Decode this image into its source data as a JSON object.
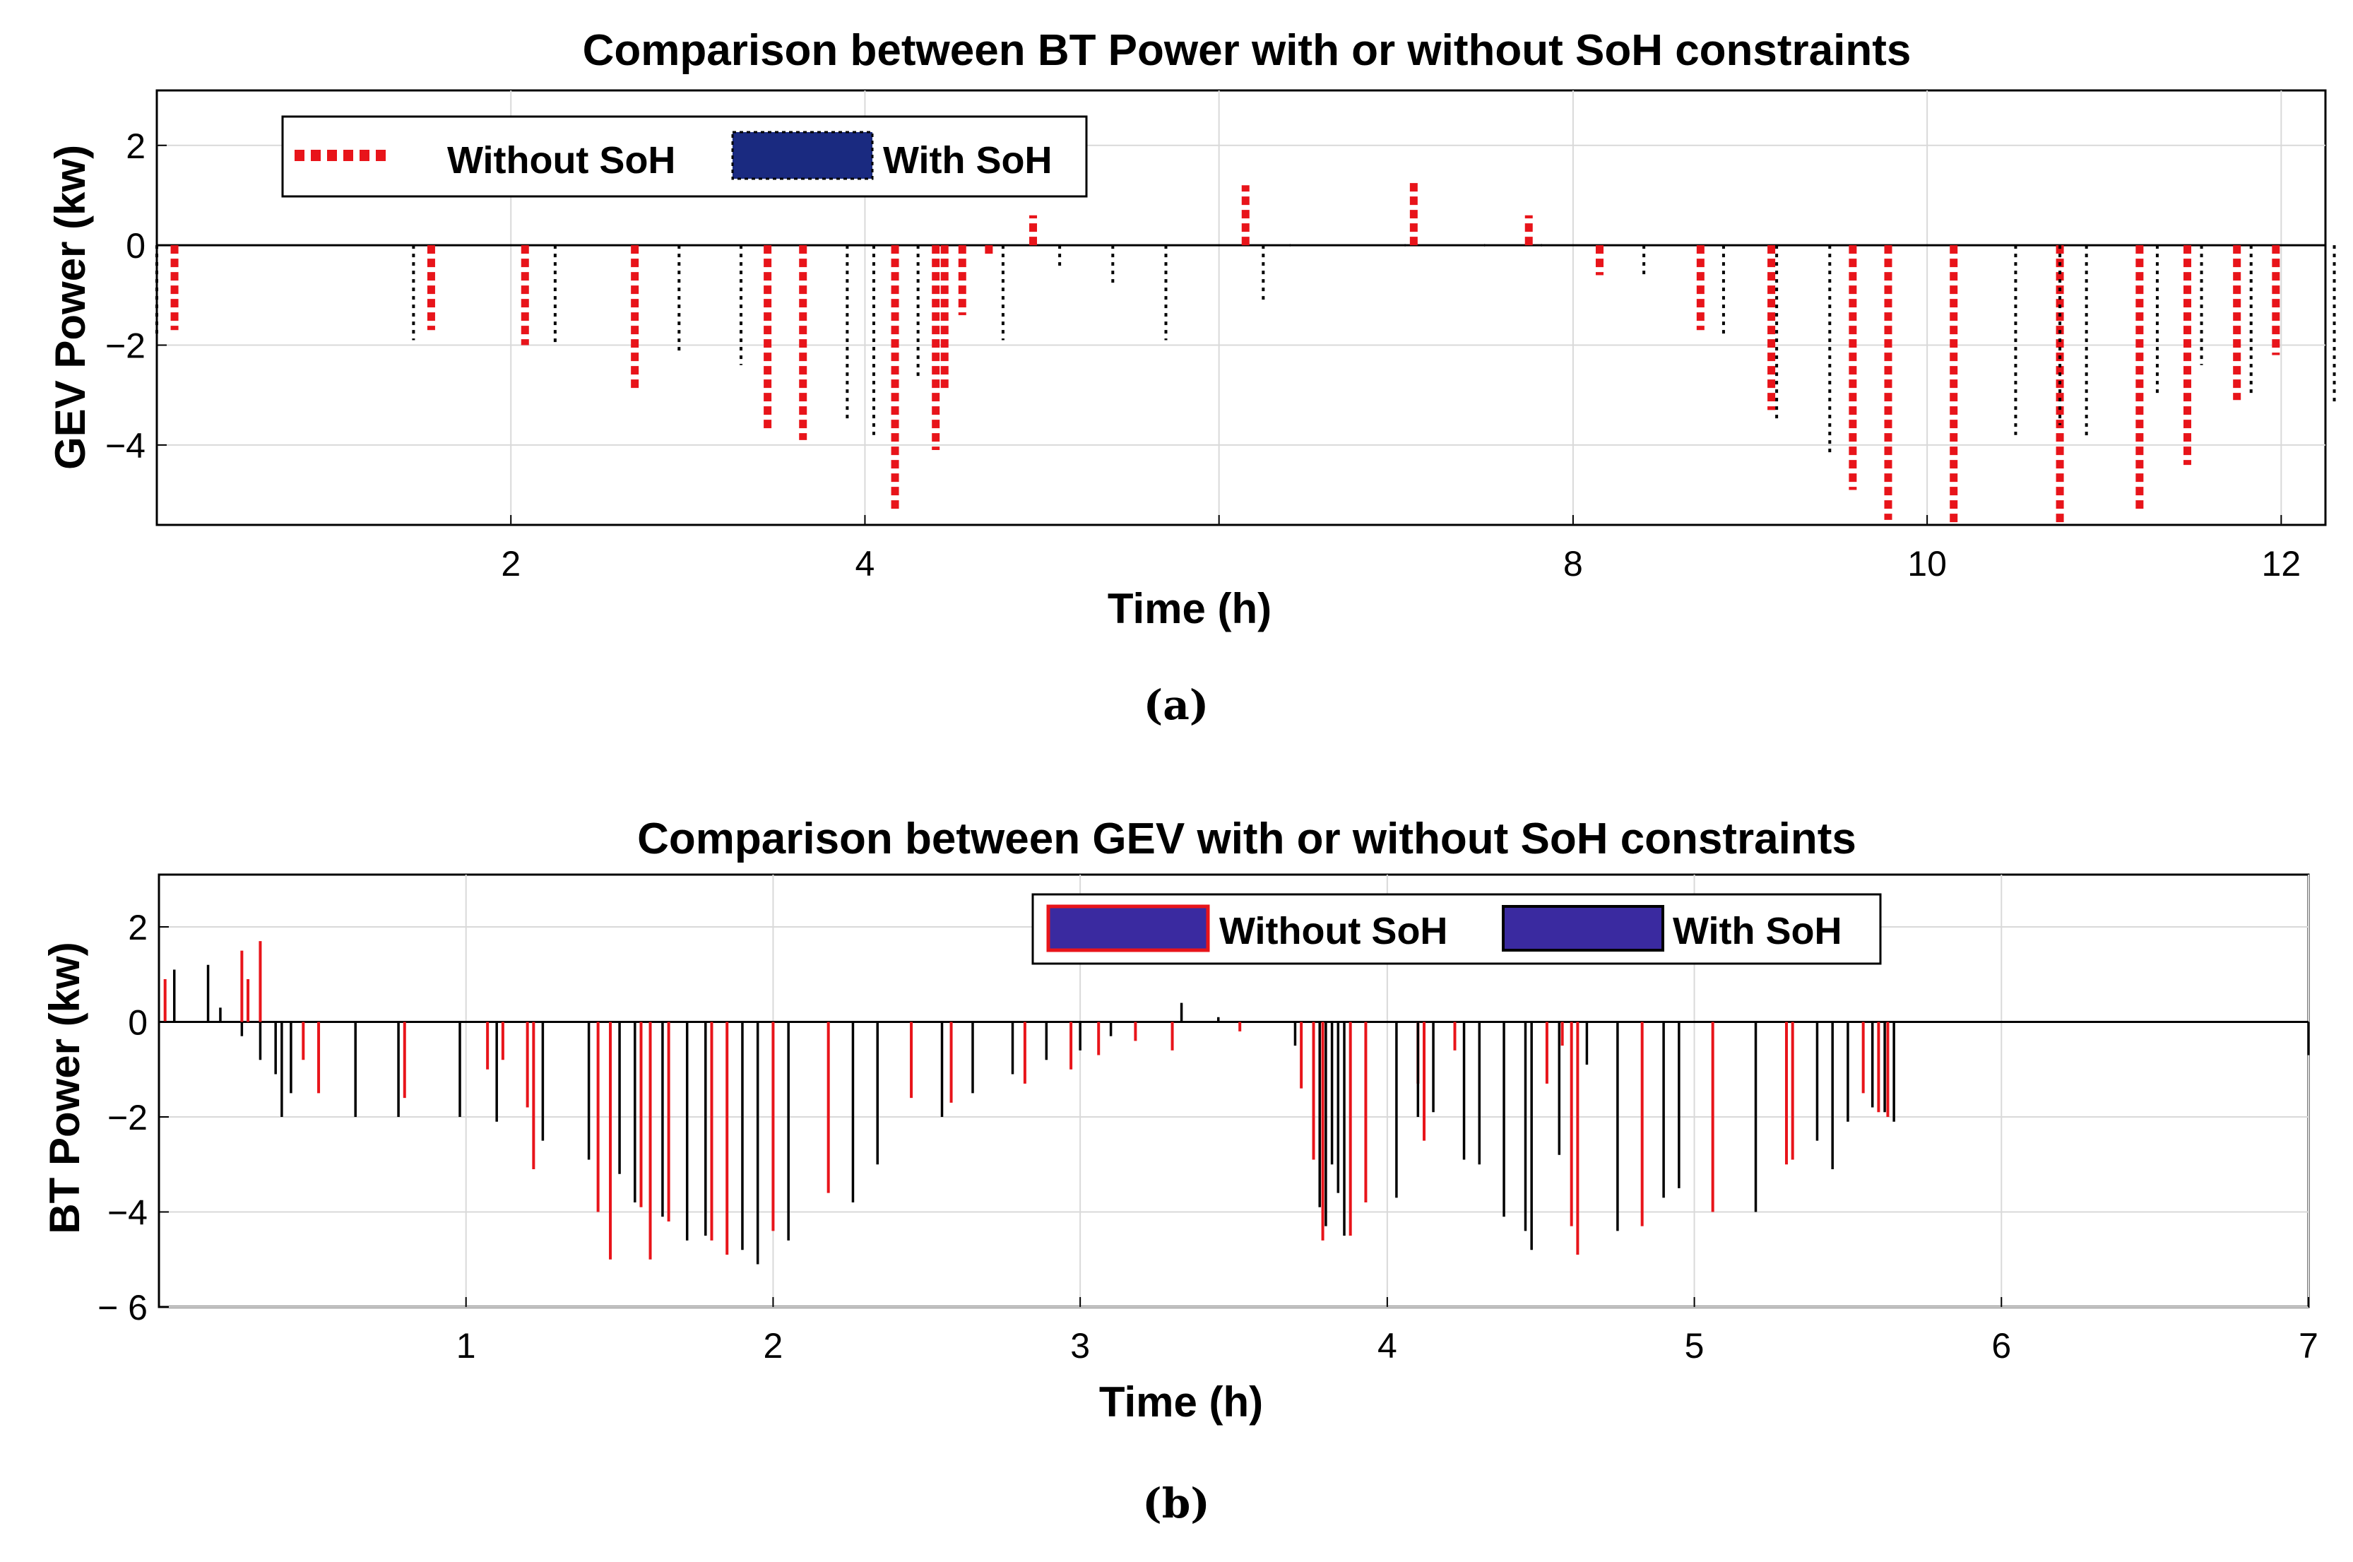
{
  "chart_data": [
    {
      "type": "bar",
      "title": "Comparison between BT Power with or without SoH constraints",
      "xlabel": "Time (h)",
      "ylabel": "GEV Power (kw)",
      "caption": "(a)",
      "xlim": [
        0,
        12.25
      ],
      "ylim": [
        -5.6,
        3.1
      ],
      "xticks": [
        2,
        4,
        6,
        8,
        10,
        12
      ],
      "xtick_labels": [
        "2",
        "4",
        "",
        "8",
        "10",
        "12"
      ],
      "yticks": [
        2,
        0,
        -2,
        -4
      ],
      "ytick_labels": [
        "2",
        "0",
        "−2",
        "−4"
      ],
      "grid": true,
      "legend": {
        "placement": "top-left",
        "items": [
          "Without SoH",
          "With SoH"
        ]
      },
      "series": [
        {
          "name": "Without SoH",
          "style": "dotted-thick",
          "color": "#e8141a",
          "x": [
            0.1,
            1.55,
            2.08,
            2.7,
            3.45,
            3.65,
            4.17,
            4.4,
            4.45,
            4.55,
            4.7,
            4.95,
            6.15,
            7.1,
            7.75,
            8.15,
            8.72,
            9.12,
            9.58,
            9.78,
            10.15,
            10.75,
            11.2,
            11.47,
            11.75,
            11.97
          ],
          "values": [
            -1.7,
            -1.7,
            -2.0,
            -2.9,
            -3.7,
            -3.9,
            -5.3,
            -4.1,
            -2.9,
            -1.4,
            -0.2,
            0.6,
            1.2,
            1.3,
            0.6,
            -0.6,
            -1.7,
            -3.3,
            -4.9,
            -5.5,
            -5.6,
            -5.6,
            -5.3,
            -4.4,
            -3.1,
            -2.2
          ]
        },
        {
          "name": "With SoH",
          "style": "dotted-thin",
          "color": "#000000",
          "x": [
            0.0,
            1.45,
            2.25,
            2.95,
            3.3,
            3.9,
            4.05,
            4.3,
            4.78,
            5.1,
            5.4,
            5.7,
            6.25,
            6.4,
            7.05,
            7.5,
            7.82,
            8.4,
            8.85,
            9.15,
            9.45,
            10.5,
            10.75,
            10.9,
            11.3,
            11.55,
            11.83,
            12.3
          ],
          "values": [
            -1.8,
            -1.9,
            -2.0,
            -2.2,
            -2.4,
            -3.5,
            -3.8,
            -2.7,
            -1.9,
            -0.5,
            -0.8,
            -1.9,
            -1.1,
            0.0,
            0.0,
            0.0,
            0.0,
            -0.6,
            -1.8,
            -3.5,
            -4.2,
            -3.8,
            -3.6,
            -3.9,
            -3.0,
            -2.4,
            -3.0,
            -3.2
          ]
        }
      ]
    },
    {
      "type": "bar",
      "title": "Comparison between GEV with or without SoH constraints",
      "xlabel": "Time (h)",
      "ylabel": "BT Power (kw)",
      "caption": "(b)",
      "xlim": [
        0,
        7
      ],
      "ylim": [
        -6,
        3.1
      ],
      "xticks": [
        1,
        2,
        3,
        4,
        5,
        6,
        7
      ],
      "xtick_labels": [
        "1",
        "2",
        "3",
        "4",
        "5",
        "6",
        "7"
      ],
      "yticks": [
        2,
        0,
        -2,
        -4,
        -6
      ],
      "ytick_labels": [
        "2",
        "0",
        "−2",
        "−4",
        "− 6"
      ],
      "grid": true,
      "legend": {
        "placement": "top-right",
        "items": [
          "Without SoH",
          "With SoH"
        ]
      },
      "series": [
        {
          "name": "Without SoH",
          "style": "stem",
          "color": "#e8141a",
          "x": [
            0.02,
            0.27,
            0.29,
            0.33,
            0.47,
            0.52,
            0.8,
            1.07,
            1.12,
            1.2,
            1.22,
            1.43,
            1.47,
            1.57,
            1.6,
            1.66,
            1.8,
            1.85,
            2.0,
            2.18,
            2.45,
            2.58,
            2.82,
            2.97,
            3.06,
            3.18,
            3.3,
            3.52,
            3.72,
            3.76,
            3.79,
            3.88,
            3.93,
            4.1,
            4.12,
            4.22,
            4.52,
            4.57,
            4.6,
            4.62,
            4.83,
            5.06,
            5.3,
            5.32,
            5.55,
            5.6,
            5.63
          ],
          "values": [
            0.9,
            1.5,
            0.9,
            1.7,
            -0.8,
            -1.5,
            -1.6,
            -1.0,
            -0.8,
            -1.8,
            -3.1,
            -4.0,
            -5.0,
            -3.9,
            -5.0,
            -4.2,
            -4.6,
            -4.9,
            -4.4,
            -3.6,
            -1.6,
            -1.7,
            -1.3,
            -1.0,
            -0.7,
            -0.4,
            -0.6,
            -0.2,
            -1.4,
            -2.9,
            -4.6,
            -4.5,
            -3.8,
            -1.3,
            -2.5,
            -0.6,
            -1.3,
            -0.5,
            -4.3,
            -4.9,
            -4.3,
            -4.0,
            -3.0,
            -2.9,
            -1.5,
            -1.9,
            -2.0
          ]
        },
        {
          "name": "With SoH",
          "style": "stem",
          "color": "#000000",
          "x": [
            0.05,
            0.16,
            0.2,
            0.27,
            0.33,
            0.38,
            0.4,
            0.43,
            0.64,
            0.78,
            0.98,
            1.1,
            1.25,
            1.4,
            1.5,
            1.55,
            1.64,
            1.72,
            1.78,
            1.9,
            1.95,
            2.05,
            2.26,
            2.34,
            2.55,
            2.65,
            2.78,
            2.89,
            3.0,
            3.1,
            3.33,
            3.45,
            3.7,
            3.78,
            3.8,
            3.82,
            3.84,
            3.86,
            4.03,
            4.1,
            4.15,
            4.25,
            4.3,
            4.38,
            4.45,
            4.47,
            4.56,
            4.65,
            4.75,
            4.9,
            4.95,
            5.2,
            5.4,
            5.45,
            5.5,
            5.58,
            5.62,
            5.65,
            7.0
          ],
          "values": [
            1.1,
            1.2,
            0.3,
            -0.3,
            -0.8,
            -1.1,
            -2.0,
            -1.5,
            -2.0,
            -2.0,
            -2.0,
            -2.1,
            -2.5,
            -2.9,
            -3.2,
            -3.8,
            -4.1,
            -4.6,
            -4.5,
            -4.8,
            -5.1,
            -4.6,
            -3.8,
            -3.0,
            -2.0,
            -1.5,
            -1.1,
            -0.8,
            -0.6,
            -0.3,
            0.4,
            0.1,
            -0.5,
            -3.9,
            -4.3,
            -3.0,
            -3.6,
            -4.5,
            -3.7,
            -2.0,
            -1.9,
            -2.9,
            -3.0,
            -4.1,
            -4.4,
            -4.8,
            -2.8,
            -0.9,
            -4.4,
            -3.7,
            -3.5,
            -4.0,
            -2.5,
            -3.1,
            -2.1,
            -1.8,
            -1.9,
            -2.1,
            -0.7
          ]
        }
      ]
    }
  ],
  "colors": {
    "without_soh": "#e8141a",
    "with_soh_a": "#1a2a80",
    "with_soh_b": "#3a2aa0",
    "grid": "#d9d9d9"
  }
}
